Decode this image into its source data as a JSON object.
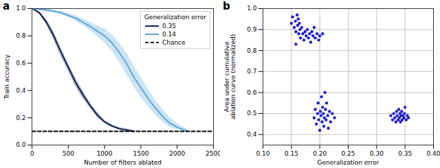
{
  "chart_data": [
    {
      "type": "line",
      "title": "a",
      "x_label": "Number of filters ablated",
      "y_label": "Train accuracy",
      "xlim": [
        0,
        2500
      ],
      "xticks": [
        0,
        500,
        1000,
        1500,
        2000,
        2500
      ],
      "ylim": [
        0,
        1.0
      ],
      "yticks": [
        {
          "value": 0,
          "label": "0.0"
        },
        {
          "value": 0.2,
          "label": "0.2"
        },
        {
          "value": 0.4,
          "label": "0.4"
        },
        {
          "value": 0.6,
          "label": "0.6"
        },
        {
          "value": 0.8,
          "label": "0.8"
        },
        {
          "value": 1.0,
          "label": "1.0"
        }
      ],
      "grid": false,
      "legend": "upper right",
      "legend_title": "Generalization error",
      "series": [
        {
          "name": "0.35",
          "color": "#0b1f4f",
          "line_style": "solid",
          "x": [
            0,
            100,
            200,
            300,
            400,
            500,
            600,
            700,
            800,
            900,
            1000,
            1100,
            1200,
            1300,
            1400
          ],
          "values": [
            1.0,
            0.97,
            0.9,
            0.8,
            0.68,
            0.57,
            0.46,
            0.37,
            0.29,
            0.22,
            0.17,
            0.14,
            0.12,
            0.11,
            0.1
          ],
          "lower": [
            1.0,
            0.96,
            0.88,
            0.77,
            0.65,
            0.54,
            0.43,
            0.34,
            0.27,
            0.2,
            0.16,
            0.13,
            0.11,
            0.1,
            0.1
          ],
          "upper": [
            1.0,
            0.98,
            0.92,
            0.83,
            0.71,
            0.6,
            0.49,
            0.4,
            0.31,
            0.24,
            0.18,
            0.15,
            0.13,
            0.12,
            0.11
          ]
        },
        {
          "name": "0.14",
          "color": "#5aa7db",
          "line_style": "solid",
          "x": [
            0,
            200,
            400,
            600,
            800,
            1000,
            1100,
            1200,
            1300,
            1400,
            1500,
            1600,
            1700,
            1800,
            1900,
            2000,
            2100,
            2150
          ],
          "values": [
            1.0,
            0.99,
            0.97,
            0.93,
            0.87,
            0.8,
            0.75,
            0.68,
            0.6,
            0.5,
            0.42,
            0.34,
            0.27,
            0.21,
            0.16,
            0.13,
            0.11,
            0.1
          ],
          "lower": [
            1.0,
            0.98,
            0.96,
            0.91,
            0.84,
            0.75,
            0.69,
            0.61,
            0.52,
            0.43,
            0.35,
            0.28,
            0.22,
            0.17,
            0.13,
            0.11,
            0.1,
            0.1
          ],
          "upper": [
            1.0,
            1.0,
            0.98,
            0.95,
            0.9,
            0.85,
            0.81,
            0.75,
            0.68,
            0.58,
            0.5,
            0.41,
            0.33,
            0.26,
            0.2,
            0.16,
            0.13,
            0.11
          ]
        },
        {
          "name": "Chance",
          "color": "#000000",
          "line_style": "dashed",
          "x": [
            0,
            2500
          ],
          "values": [
            0.1,
            0.1
          ]
        }
      ]
    },
    {
      "type": "scatter",
      "title": "b",
      "x_label": "Generalization error",
      "y_label": "Area under cumulative\nablation curve (normalized)",
      "xlim": [
        0.1,
        0.4
      ],
      "xticks": [
        {
          "value": 0.1,
          "label": "0.10"
        },
        {
          "value": 0.15,
          "label": "0.15"
        },
        {
          "value": 0.2,
          "label": "0.20"
        },
        {
          "value": 0.25,
          "label": "0.25"
        },
        {
          "value": 0.3,
          "label": "0.30"
        },
        {
          "value": 0.35,
          "label": "0.35"
        },
        {
          "value": 0.4,
          "label": "0.40"
        }
      ],
      "ylim": [
        0.35,
        1.0
      ],
      "yticks": [
        0.4,
        0.5,
        0.6,
        0.7,
        0.8,
        0.9,
        {
          "value": 1.0,
          "label": "1.0"
        }
      ],
      "grid": true,
      "color": "#1f1fd0",
      "marker": "circle",
      "x": [
        0.15,
        0.152,
        0.155,
        0.157,
        0.158,
        0.16,
        0.161,
        0.162,
        0.163,
        0.164,
        0.165,
        0.166,
        0.168,
        0.17,
        0.172,
        0.174,
        0.176,
        0.178,
        0.18,
        0.182,
        0.184,
        0.186,
        0.188,
        0.19,
        0.192,
        0.195,
        0.198,
        0.2,
        0.205,
        0.158,
        0.19,
        0.192,
        0.194,
        0.196,
        0.197,
        0.198,
        0.2,
        0.201,
        0.202,
        0.203,
        0.204,
        0.205,
        0.206,
        0.207,
        0.208,
        0.209,
        0.21,
        0.211,
        0.212,
        0.214,
        0.215,
        0.217,
        0.219,
        0.222,
        0.226,
        0.325,
        0.328,
        0.33,
        0.332,
        0.334,
        0.335,
        0.336,
        0.338,
        0.339,
        0.34,
        0.341,
        0.342,
        0.343,
        0.344,
        0.345,
        0.346,
        0.348,
        0.349,
        0.35,
        0.352,
        0.354,
        0.356
      ],
      "values": [
        0.93,
        0.96,
        0.91,
        0.94,
        0.89,
        0.97,
        0.92,
        0.95,
        0.88,
        0.93,
        0.9,
        0.86,
        0.91,
        0.88,
        0.85,
        0.89,
        0.87,
        0.9,
        0.86,
        0.88,
        0.84,
        0.89,
        0.87,
        0.91,
        0.86,
        0.88,
        0.85,
        0.87,
        0.88,
        0.83,
        0.48,
        0.52,
        0.45,
        0.5,
        0.55,
        0.47,
        0.42,
        0.51,
        0.49,
        0.58,
        0.46,
        0.53,
        0.5,
        0.44,
        0.48,
        0.6,
        0.52,
        0.47,
        0.55,
        0.49,
        0.43,
        0.51,
        0.46,
        0.5,
        0.48,
        0.49,
        0.47,
        0.5,
        0.48,
        0.46,
        0.51,
        0.49,
        0.47,
        0.52,
        0.48,
        0.5,
        0.46,
        0.49,
        0.51,
        0.47,
        0.49,
        0.48,
        0.5,
        0.53,
        0.47,
        0.49,
        0.48
      ]
    }
  ]
}
